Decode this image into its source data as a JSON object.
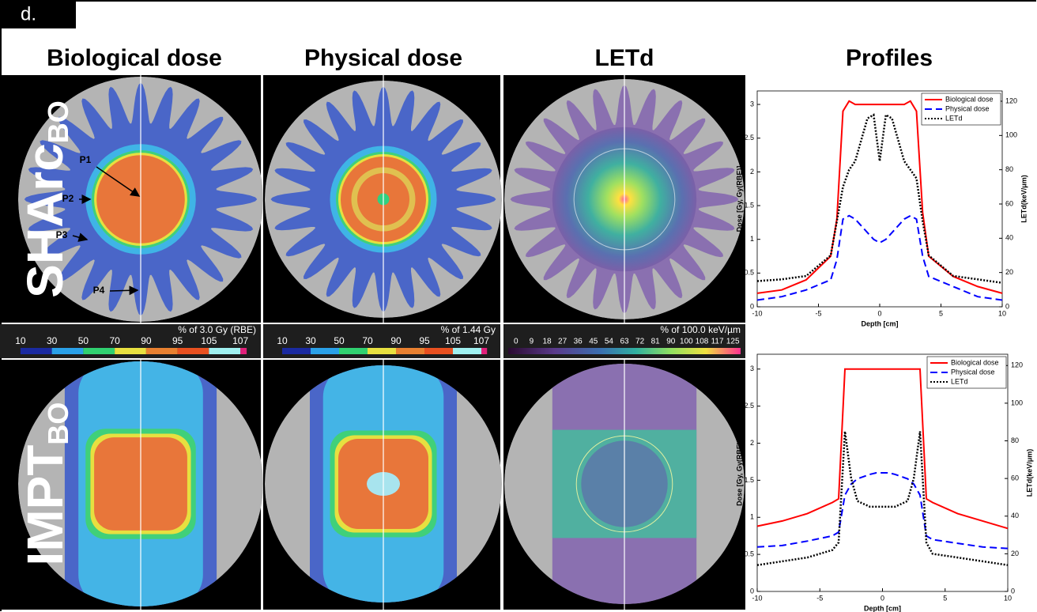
{
  "label": "d.",
  "columns": [
    "Biological dose",
    "Physical dose",
    "LETd",
    "Profiles"
  ],
  "rows": [
    {
      "name": "SHArc",
      "sub": "BO"
    },
    {
      "name": "IMPT",
      "sub": "BO"
    }
  ],
  "points": [
    "P1",
    "P2",
    "P3",
    "P4"
  ],
  "colorbars": [
    {
      "title": "% of 3.0 Gy (RBE)",
      "ticks": [
        10,
        30,
        50,
        70,
        90,
        95,
        105,
        107
      ]
    },
    {
      "title": "% of 1.44 Gy",
      "ticks": [
        10,
        30,
        50,
        70,
        90,
        95,
        105,
        107
      ]
    },
    {
      "title": "% of 100.0 keV/µm",
      "ticks": [
        0,
        9,
        18,
        27,
        36,
        45,
        54,
        63,
        72,
        81,
        90,
        100,
        108,
        117,
        125
      ]
    }
  ],
  "chart_data": [
    {
      "type": "line",
      "x": [
        -10,
        -8,
        -6,
        -4,
        -3.5,
        -3,
        -2.5,
        -2,
        -1,
        -0.5,
        0,
        0.5,
        1,
        2,
        2.5,
        3,
        3.5,
        4,
        6,
        8,
        10
      ],
      "series": [
        {
          "name": "Biological dose",
          "color": "#ff0000",
          "dash": "solid",
          "values": [
            0.2,
            0.25,
            0.4,
            0.75,
            1.3,
            2.9,
            3.05,
            3.0,
            3.0,
            3.0,
            3.0,
            3.0,
            3.0,
            3.0,
            3.05,
            2.9,
            1.4,
            0.75,
            0.45,
            0.3,
            0.2
          ]
        },
        {
          "name": "Physical dose",
          "color": "#0000ff",
          "dash": "dashed",
          "values": [
            0.1,
            0.15,
            0.25,
            0.4,
            0.7,
            1.3,
            1.35,
            1.3,
            1.1,
            1.0,
            0.95,
            1.0,
            1.1,
            1.3,
            1.35,
            1.3,
            0.75,
            0.45,
            0.3,
            0.15,
            0.1
          ]
        },
        {
          "name": "LETd",
          "color": "#000000",
          "dash": "dotted",
          "axis": "y2",
          "values": [
            15,
            16,
            18,
            30,
            50,
            70,
            80,
            85,
            110,
            112,
            85,
            112,
            110,
            85,
            80,
            75,
            50,
            30,
            18,
            16,
            14
          ]
        }
      ],
      "xlim": [
        -10,
        10
      ],
      "xticks": [
        -10,
        -5,
        0,
        5,
        10
      ],
      "ylim": [
        0,
        3.2
      ],
      "yticks": [
        0,
        0.5,
        1,
        1.5,
        2,
        2.5,
        3
      ],
      "y2lim": [
        0,
        126
      ],
      "y2ticks": [
        0,
        20,
        40,
        60,
        80,
        100,
        120
      ],
      "xlabel": "Depth [cm]",
      "ylabel": "Dose [Gy, Gy(RBE)]",
      "y2label": "LETd(keV/μm)",
      "legend": "upper right"
    },
    {
      "type": "line",
      "x": [
        -10,
        -8,
        -6,
        -4,
        -3.5,
        -3,
        -2.5,
        -2,
        -1,
        -0.5,
        0,
        0.5,
        1,
        2,
        2.5,
        3,
        3.5,
        4,
        6,
        8,
        10
      ],
      "series": [
        {
          "name": "Biological dose",
          "color": "#ff0000",
          "dash": "solid",
          "values": [
            0.88,
            0.95,
            1.05,
            1.2,
            1.25,
            3.0,
            3.0,
            3.0,
            3.0,
            3.0,
            3.0,
            3.0,
            3.0,
            3.0,
            3.0,
            3.0,
            1.25,
            1.2,
            1.05,
            0.95,
            0.85
          ]
        },
        {
          "name": "Physical dose",
          "color": "#0000ff",
          "dash": "dashed",
          "values": [
            0.6,
            0.62,
            0.68,
            0.75,
            0.8,
            1.3,
            1.45,
            1.52,
            1.58,
            1.6,
            1.6,
            1.6,
            1.58,
            1.52,
            1.45,
            1.3,
            0.75,
            0.7,
            0.65,
            0.6,
            0.58
          ]
        },
        {
          "name": "LETd",
          "color": "#000000",
          "dash": "dotted",
          "axis": "y2",
          "values": [
            14,
            16,
            18,
            22,
            26,
            85,
            60,
            48,
            45,
            45,
            45,
            45,
            45,
            48,
            60,
            85,
            26,
            20,
            18,
            16,
            14
          ]
        }
      ],
      "xlim": [
        -10,
        10
      ],
      "xticks": [
        -10,
        -5,
        0,
        5,
        10
      ],
      "ylim": [
        0,
        3.2
      ],
      "yticks": [
        0,
        0.5,
        1,
        1.5,
        2,
        2.5,
        3
      ],
      "y2lim": [
        0,
        126
      ],
      "y2ticks": [
        0,
        20,
        40,
        60,
        80,
        100,
        120
      ],
      "xlabel": "Depth [cm]",
      "ylabel": "Dose [Gy, Gy(RBE)]",
      "y2label": "LETd(keV/μm)",
      "legend": "upper right"
    }
  ]
}
